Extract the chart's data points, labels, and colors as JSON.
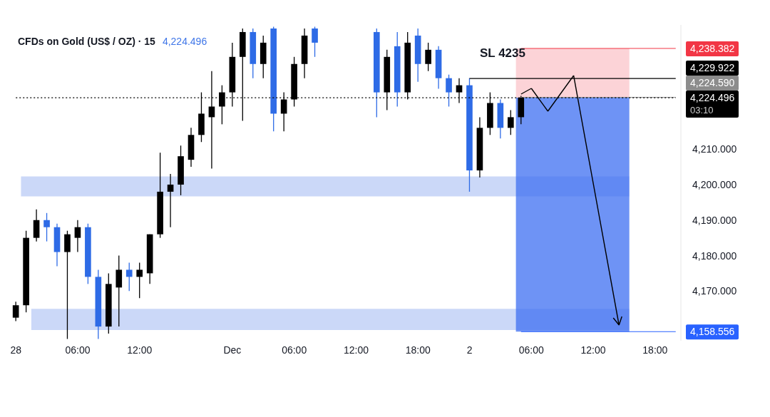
{
  "chart_data": {
    "type": "candlestick",
    "title": "CFDs on Gold (US$ / OZ) · 15",
    "subtitle": "4,224.496",
    "categories": [
      "28",
      null,
      null,
      null,
      null,
      null,
      "06:00",
      null,
      null,
      null,
      null,
      null,
      "12:00",
      null,
      null,
      null,
      null,
      null,
      null,
      null,
      null,
      "Dec",
      null,
      null,
      null,
      null,
      null,
      "06:00",
      null,
      null,
      null,
      null,
      null,
      "12:00",
      null,
      null,
      null,
      null,
      null,
      "18:00",
      null,
      null,
      null,
      null,
      "2",
      null,
      null,
      null,
      null,
      null,
      "06:00",
      null,
      null,
      null,
      null,
      null,
      "12:00",
      null,
      null,
      null,
      null,
      null,
      "18:00",
      null,
      null
    ],
    "ohlc": [
      [
        4162.5,
        4167,
        4161.5,
        4166
      ],
      [
        4166,
        4187,
        4164,
        4185
      ],
      [
        4185,
        4193,
        4184,
        4190
      ],
      [
        4190,
        4192,
        4184,
        4188
      ],
      [
        4188,
        4189,
        4177,
        4181
      ],
      [
        4181,
        4187,
        4156.5,
        4186
      ],
      [
        4185,
        4190,
        4181,
        4188
      ],
      [
        4188,
        4189,
        4172,
        4174
      ],
      [
        4174,
        4176,
        4156.5,
        4160
      ],
      [
        4160,
        4175,
        4158,
        4172
      ],
      [
        4171,
        4180,
        4160,
        4176
      ],
      [
        4176,
        4178,
        4170,
        4174
      ],
      [
        4174,
        4178,
        4168,
        4176
      ],
      [
        4175,
        4186,
        4172,
        4186
      ],
      [
        4186,
        4209,
        4185,
        4198
      ],
      [
        4198,
        4203,
        4188,
        4200
      ],
      [
        4200,
        4211,
        4197,
        4208
      ],
      [
        4207,
        4216,
        4205,
        4214
      ],
      [
        4214,
        4226,
        4212,
        4220
      ],
      [
        4219,
        4232,
        4204.5,
        4222
      ],
      [
        4222,
        4228,
        4217,
        4226
      ],
      [
        4226,
        4240,
        4222,
        4236
      ],
      [
        4236,
        4244,
        4218,
        4243
      ],
      [
        4243,
        4244,
        4230,
        4234
      ],
      [
        4234,
        4242,
        4230,
        4240
      ],
      [
        4244,
        4244.5,
        4215,
        4220
      ],
      [
        4220,
        4226,
        4215,
        4224
      ],
      [
        4224,
        4236,
        4222,
        4234
      ],
      [
        4234,
        4244,
        4230,
        4242
      ],
      [
        4244,
        4244.5,
        4236,
        4240
      ],
      null,
      null,
      null,
      null,
      null,
      [
        4243,
        4244,
        4219,
        4226
      ],
      [
        4226,
        4238,
        4221,
        4236
      ],
      [
        4239,
        4243,
        4222,
        4226
      ],
      [
        4226,
        4243,
        4224,
        4240
      ],
      [
        4242,
        4244,
        4229,
        4234
      ],
      [
        4234,
        4240,
        4232,
        4238
      ],
      [
        4238,
        4239,
        4227,
        4230
      ],
      [
        4230,
        4231,
        4222,
        4226
      ],
      [
        4226,
        4230,
        4223,
        4228
      ],
      [
        4228,
        4230,
        4198,
        4204
      ],
      [
        4204,
        4219,
        4202,
        4216
      ],
      [
        4216,
        4226,
        4214,
        4223
      ],
      [
        4223,
        4224,
        4213,
        4216
      ],
      [
        4216,
        4221,
        4214,
        4219
      ],
      [
        4219,
        4225,
        4217,
        4224.496
      ],
      null,
      null,
      null,
      null,
      null,
      null,
      null,
      null,
      null,
      null,
      null,
      null,
      null,
      null,
      null
    ],
    "colors": [
      "#000000",
      "#000000",
      "#000000",
      "#2e6be6",
      "#2e6be6",
      "#000000",
      "#000000",
      "#2e6be6",
      "#2e6be6",
      "#000000",
      "#000000",
      "#2e6be6",
      "#000000",
      "#000000",
      "#000000",
      "#000000",
      "#000000",
      "#000000",
      "#000000",
      "#000000",
      "#000000",
      "#000000",
      "#000000",
      "#2e6be6",
      "#000000",
      "#2e6be6",
      "#000000",
      "#000000",
      "#000000",
      "#2e6be6",
      null,
      null,
      null,
      null,
      null,
      "#2e6be6",
      "#000000",
      "#2e6be6",
      "#000000",
      "#2e6be6",
      "#000000",
      "#2e6be6",
      "#2e6be6",
      "#000000",
      "#2e6be6",
      "#000000",
      "#000000",
      "#2e6be6",
      "#000000",
      "#000000",
      null,
      null,
      null,
      null,
      null,
      null,
      null,
      null,
      null,
      null,
      null,
      null,
      null,
      null,
      null
    ],
    "ylim": [
      4156,
      4245
    ],
    "yticks": [
      {
        "value": 4170,
        "label": "4,170.000"
      },
      {
        "value": 4180,
        "label": "4,180.000"
      },
      {
        "value": 4190,
        "label": "4,190.000"
      },
      {
        "value": 4200,
        "label": "4,200.000"
      },
      {
        "value": 4210,
        "label": "4,210.000"
      }
    ],
    "bands": [
      {
        "axis": "y",
        "from": 4196.7,
        "to": 4202.3,
        "color": "#b9cbf6"
      },
      {
        "axis": "y",
        "from": 4159,
        "to": 4165,
        "color": "#b9cbf6"
      },
      {
        "axis": "y",
        "from": 4224.496,
        "to": 4238.382,
        "color": "#fbc4c9"
      },
      {
        "axis": "y",
        "from": 4158.556,
        "to": 4224.496,
        "color": "#3d6ff2"
      }
    ],
    "ref_lines": [
      {
        "axis": "y",
        "value": 4238.382,
        "label": "4,238.382",
        "color": "#f23645"
      },
      {
        "axis": "y",
        "value": 4229.922,
        "label": "4,229.922",
        "color": "#000000",
        "line_style": "solid"
      },
      {
        "axis": "y",
        "value": 4224.59,
        "label": "4,224.590",
        "color": "#8c8c8c"
      },
      {
        "axis": "y",
        "value": 4224.496,
        "label": "4,224.496",
        "color": "#000000",
        "line_style": "dotted"
      },
      {
        "axis": "y",
        "value": 4158.556,
        "label": "4,158.556",
        "color": "#2962ff"
      }
    ],
    "annotations": [
      "SL 4235",
      "03:10"
    ]
  }
}
